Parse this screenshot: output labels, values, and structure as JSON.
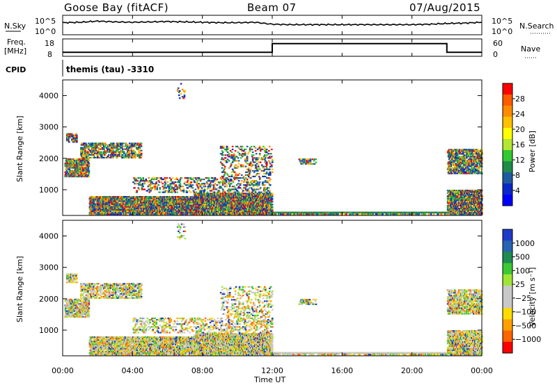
{
  "header": {
    "station": "Goose Bay (fitACF)",
    "beam": "Beam 07",
    "date": "07/Aug/2015"
  },
  "top_panels": {
    "nsky_label": "N.Sky",
    "nsearch_label": "N.Search",
    "nsky_ticks": [
      "10^5",
      "10^0"
    ],
    "nsearch_ticks": [
      "10^5",
      "10^0"
    ],
    "freq_label_1": "Freq.",
    "freq_label_2": "[MHz]",
    "freq_ticks": [
      "18",
      "8"
    ],
    "nave_label": "Nave",
    "nave_ticks": [
      "60",
      "0"
    ],
    "cpid_label": "CPID",
    "cpid_text": "themis (tau) -3310"
  },
  "colorbars": {
    "power": {
      "label": "Power [dB]",
      "ticks": [
        "28",
        "24",
        "20",
        "16",
        "12",
        "8",
        "4"
      ],
      "colors": [
        "#ff0000",
        "#ff5a00",
        "#ff8c00",
        "#ffc000",
        "#ffff00",
        "#b4e632",
        "#32c832",
        "#1e8c46",
        "#1e5aa0",
        "#0a28c8",
        "#0000ff"
      ]
    },
    "velocity": {
      "label": "Velocity [m s⁻¹]",
      "ticks": [
        "1000",
        "500",
        "100",
        "25",
        "−25",
        "−100",
        "−500",
        "−1000"
      ],
      "colors": [
        "#1e3cc8",
        "#2864b4",
        "#1e8c50",
        "#3cc832",
        "#9ee632",
        "#c8c8c8",
        "#c8c8c8",
        "#ffdc00",
        "#ffa000",
        "#ff6400",
        "#ff0000"
      ]
    }
  },
  "chart_data": [
    {
      "type": "line",
      "title": "N.Sky / N.Search",
      "x": [
        0,
        1,
        2,
        3,
        4,
        5,
        6,
        7,
        8,
        9,
        10,
        11,
        12,
        13,
        14,
        15,
        16,
        17,
        18,
        19,
        20,
        21,
        22,
        23,
        24
      ],
      "series": [
        {
          "name": "N.Sky",
          "values": [
            3.1,
            3.2,
            3.5,
            3.3,
            3.2,
            3.3,
            3.4,
            3.3,
            3.2,
            3.1,
            3.1,
            3.2,
            2.7,
            2.6,
            2.6,
            2.6,
            2.6,
            2.6,
            2.6,
            2.6,
            2.6,
            2.7,
            2.9,
            3.0,
            3.2
          ]
        }
      ],
      "ylim": [
        0,
        5
      ],
      "xlim": [
        0,
        24
      ]
    },
    {
      "type": "line",
      "title": "Freq. [MHz] / Nave",
      "x": [
        0,
        12,
        12,
        22,
        22,
        24
      ],
      "series": [
        {
          "name": "Freq.",
          "values": [
            10.3,
            10.3,
            15.3,
            15.3,
            10.3,
            10.3
          ]
        }
      ],
      "ylim": [
        8,
        18
      ],
      "xlim": [
        0,
        24
      ]
    },
    {
      "type": "heatmap",
      "title": "Power [dB]",
      "ylabel": "Slant Range [km]",
      "xlim": [
        0,
        24
      ],
      "ylim": [
        180,
        4500
      ],
      "yticks": [
        1000,
        2000,
        3000,
        4000
      ],
      "clim": [
        0,
        30
      ]
    },
    {
      "type": "heatmap",
      "title": "Velocity [m s⁻¹]",
      "ylabel": "Slant Range [km]",
      "xlabel": "Time UT",
      "xlim": [
        0,
        24
      ],
      "ylim": [
        180,
        4500
      ],
      "xticks": [
        "00:00",
        "04:00",
        "08:00",
        "12:00",
        "16:00",
        "20:00",
        "00:00"
      ],
      "yticks": [
        1000,
        2000,
        3000,
        4000
      ],
      "clim": [
        -1000,
        1000
      ]
    }
  ]
}
